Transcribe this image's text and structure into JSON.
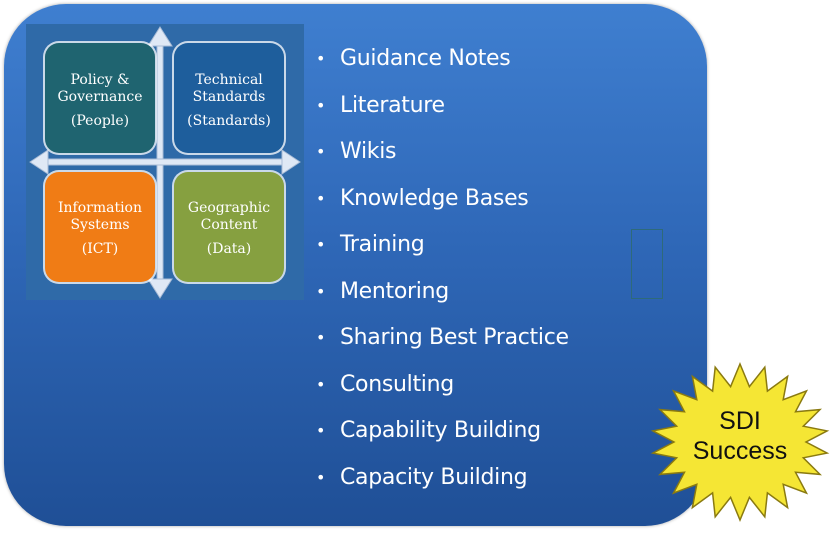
{
  "quadrant": {
    "top_left": {
      "line1": "Policy &",
      "line2": "Governance",
      "line3": "(People)"
    },
    "top_right": {
      "line1": "Technical",
      "line2": "Standards",
      "line3": "(Standards)"
    },
    "bottom_left": {
      "line1": "Information",
      "line2": "Systems",
      "line3": "(ICT)"
    },
    "bottom_right": {
      "line1": "Geographic",
      "line2": "Content",
      "line3": "(Data)"
    }
  },
  "bullets": [
    "Guidance Notes",
    "Literature",
    "Wikis",
    "Knowledge Bases",
    "Training",
    "Mentoring",
    "Sharing Best Practice",
    "Consulting",
    "Capability Building",
    "Capacity Building"
  ],
  "badge": {
    "line1": "SDI",
    "line2": "Success"
  },
  "colors": {
    "panel": "#2f68b8",
    "policy": "#1f6470",
    "technical": "#1e5e9c",
    "information": "#f07c15",
    "geographic": "#86a040",
    "badge": "#f5e634"
  }
}
